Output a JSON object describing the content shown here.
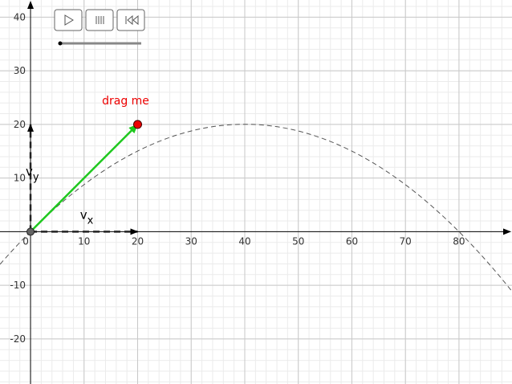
{
  "graph": {
    "xlim": [
      -5.7,
      89.9
    ],
    "ylim": [
      -28.4,
      43.2
    ],
    "xticks": [
      0,
      10,
      20,
      30,
      40,
      50,
      60,
      70,
      80
    ],
    "yticks": [
      -20,
      -10,
      10,
      20,
      30,
      40
    ],
    "minor_step": 2,
    "point": {
      "x": 20,
      "y": 20,
      "label": "drag me"
    },
    "vector_x": {
      "label": "v",
      "subscript": "x"
    },
    "vector_y": {
      "label": "v",
      "subscript": "y"
    }
  }
}
